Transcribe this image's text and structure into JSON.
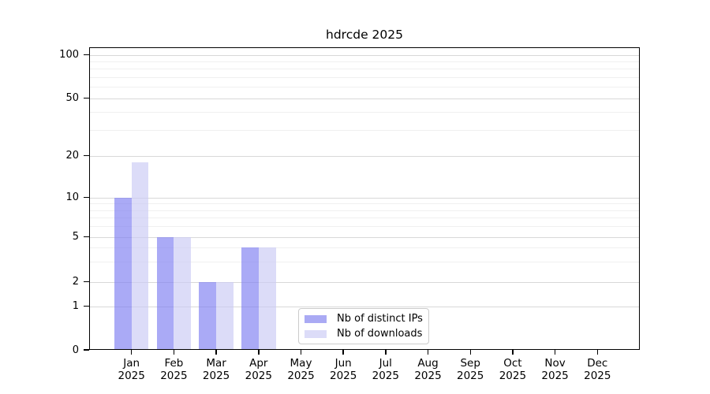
{
  "title": "hdrcde 2025",
  "legend": {
    "items": [
      {
        "label": "Nb of distinct IPs",
        "swatch_color": "#aaaaf4"
      },
      {
        "label": "Nb of downloads",
        "swatch_color": "#dcdcf8"
      }
    ]
  },
  "chart_data": {
    "type": "bar",
    "title": "hdrcde 2025",
    "categories": [
      "Jan 2025",
      "Feb 2025",
      "Mar 2025",
      "Apr 2025",
      "May 2025",
      "Jun 2025",
      "Jul 2025",
      "Aug 2025",
      "Sep 2025",
      "Oct 2025",
      "Nov 2025",
      "Dec 2025"
    ],
    "x_tick_months": [
      "Jan",
      "Feb",
      "Mar",
      "Apr",
      "May",
      "Jun",
      "Jul",
      "Aug",
      "Sep",
      "Oct",
      "Nov",
      "Dec"
    ],
    "x_tick_year": "2025",
    "series": [
      {
        "name": "Nb of distinct IPs",
        "values": [
          10,
          5,
          2,
          4,
          0,
          0,
          0,
          0,
          0,
          0,
          0,
          0
        ],
        "bar_color": "rgba(126,126,241,0.66)",
        "swatch_color": "#aaaaf4"
      },
      {
        "name": "Nb of downloads",
        "values": [
          18,
          5,
          2,
          4,
          0,
          0,
          0,
          0,
          0,
          0,
          0,
          0
        ],
        "bar_color": "rgba(202,202,244,0.66)",
        "swatch_color": "#dcdcf8"
      }
    ],
    "ylabel": "",
    "xlabel": "",
    "yscale": "log (linear segment between 0 and 1)",
    "ylim": [
      0,
      113
    ],
    "y_ticks_major": [
      0,
      1,
      2,
      5,
      10,
      20,
      50,
      100
    ],
    "y_ticks_minor": [
      3,
      4,
      6,
      7,
      8,
      9,
      30,
      40,
      60,
      70,
      80,
      90
    ],
    "grid": "horizontal major and minor",
    "legend_position": "lower center",
    "colors": {
      "major_grid": "#d8d8d8",
      "minor_grid": "#f0f0f0",
      "spine": "#000000",
      "background": "#ffffff"
    }
  }
}
